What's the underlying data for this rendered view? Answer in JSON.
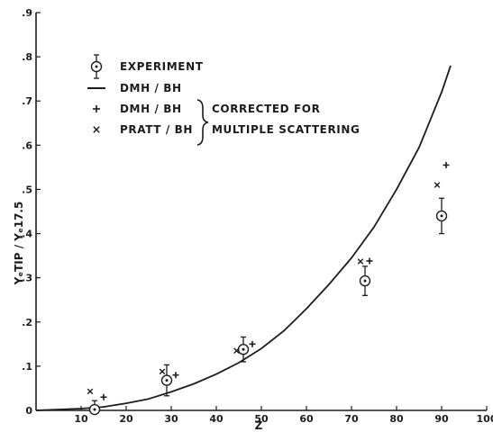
{
  "chart_data": {
    "type": "scatter",
    "xlabel": "Z",
    "ylabel": "YₑTIP / Yₑ17.5",
    "xlim": [
      0,
      100
    ],
    "ylim": [
      0,
      0.9
    ],
    "x_ticks": [
      {
        "value": 10,
        "label": "10"
      },
      {
        "value": 20,
        "label": "20"
      },
      {
        "value": 30,
        "label": "30"
      },
      {
        "value": 40,
        "label": "40"
      },
      {
        "value": 50,
        "label": "50"
      },
      {
        "value": 60,
        "label": "60"
      },
      {
        "value": 70,
        "label": "70"
      },
      {
        "value": 80,
        "label": "80"
      },
      {
        "value": 90,
        "label": "90"
      },
      {
        "value": 100,
        "label": "100"
      }
    ],
    "y_ticks": [
      {
        "value": 0,
        "label": "0"
      },
      {
        "value": 0.1,
        "label": ".1"
      },
      {
        "value": 0.2,
        "label": ".2"
      },
      {
        "value": 0.3,
        "label": ".3"
      },
      {
        "value": 0.4,
        "label": ".4"
      },
      {
        "value": 0.5,
        "label": ".5"
      },
      {
        "value": 0.6,
        "label": ".6"
      },
      {
        "value": 0.7,
        "label": ".7"
      },
      {
        "value": 0.8,
        "label": ".8"
      },
      {
        "value": 0.9,
        "label": ".9"
      }
    ],
    "grid": false,
    "legend_position": "top-left",
    "series": [
      {
        "name": "EXPERIMENT",
        "marker": "circle-dot",
        "points": [
          {
            "x": 13,
            "y": 0.002,
            "err_low": 0.002,
            "err_high": 0.02
          },
          {
            "x": 29,
            "y": 0.068,
            "err_low": 0.035,
            "err_high": 0.035
          },
          {
            "x": 46,
            "y": 0.138,
            "err_low": 0.028,
            "err_high": 0.028
          },
          {
            "x": 73,
            "y": 0.293,
            "err_low": 0.033,
            "err_high": 0.033
          },
          {
            "x": 90,
            "y": 0.44,
            "err_low": 0.04,
            "err_high": 0.04
          }
        ]
      },
      {
        "name": "DMH / BH",
        "marker": "line",
        "points": [
          {
            "x": 0,
            "y": 0.0
          },
          {
            "x": 10,
            "y": 0.004
          },
          {
            "x": 15,
            "y": 0.008
          },
          {
            "x": 20,
            "y": 0.016
          },
          {
            "x": 25,
            "y": 0.026
          },
          {
            "x": 30,
            "y": 0.042
          },
          {
            "x": 35,
            "y": 0.06
          },
          {
            "x": 40,
            "y": 0.082
          },
          {
            "x": 45,
            "y": 0.108
          },
          {
            "x": 50,
            "y": 0.14
          },
          {
            "x": 55,
            "y": 0.18
          },
          {
            "x": 60,
            "y": 0.23
          },
          {
            "x": 65,
            "y": 0.285
          },
          {
            "x": 70,
            "y": 0.345
          },
          {
            "x": 75,
            "y": 0.415
          },
          {
            "x": 80,
            "y": 0.5
          },
          {
            "x": 85,
            "y": 0.595
          },
          {
            "x": 90,
            "y": 0.72
          },
          {
            "x": 92,
            "y": 0.78
          }
        ]
      },
      {
        "name": "DMH / BH",
        "marker": "plus",
        "points": [
          {
            "x": 15,
            "y": 0.03
          },
          {
            "x": 31,
            "y": 0.08
          },
          {
            "x": 48,
            "y": 0.15
          },
          {
            "x": 74,
            "y": 0.338
          },
          {
            "x": 91,
            "y": 0.555
          }
        ]
      },
      {
        "name": "PRATT / BH",
        "marker": "cross",
        "points": [
          {
            "x": 12,
            "y": 0.043
          },
          {
            "x": 28,
            "y": 0.088
          },
          {
            "x": 44.5,
            "y": 0.135
          },
          {
            "x": 72,
            "y": 0.337
          },
          {
            "x": 89,
            "y": 0.51
          }
        ]
      }
    ],
    "annotations": {
      "brace_text_line1": "CORRECTED FOR",
      "brace_text_line2": "MULTIPLE SCATTERING"
    },
    "colors": {
      "ink": "#1c1c1c",
      "background": "#ffffff"
    }
  }
}
